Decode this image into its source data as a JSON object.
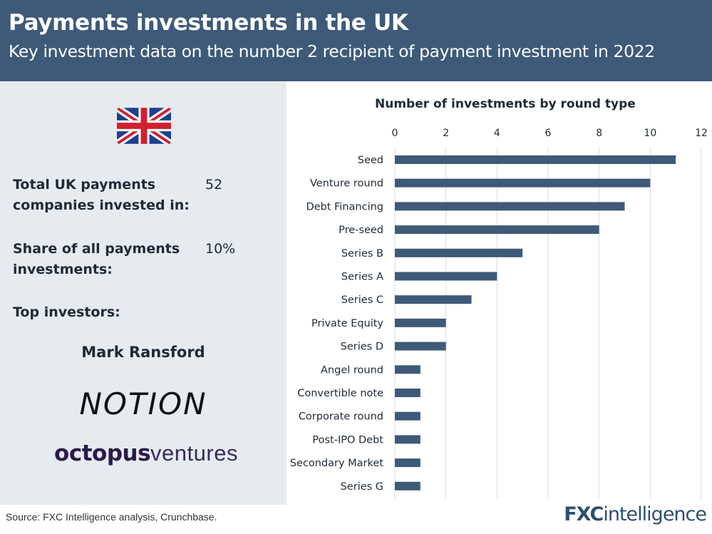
{
  "header": {
    "title": "Payments investments in the UK",
    "subtitle": "Key investment data on the number 2 recipient of payment investment in 2022"
  },
  "stats": {
    "total_label_line1": "Total UK payments",
    "total_label_line2": "companies invested in:",
    "total_value": "52",
    "share_label_line1": "Share of all payments",
    "share_label_line2": "investments:",
    "share_value": "10%",
    "top_investors_label": "Top investors:"
  },
  "investors": [
    {
      "name": "Mark Ransford"
    },
    {
      "name": "NOTION",
      "type": "logo"
    },
    {
      "name_bold": "octopus",
      "name_light": "ventures",
      "type": "logo"
    }
  ],
  "chart_data": {
    "type": "bar",
    "orientation": "horizontal",
    "title": "Number of investments by round type",
    "categories": [
      "Seed",
      "Venture round",
      "Debt Financing",
      "Pre-seed",
      "Series B",
      "Series A",
      "Series C",
      "Private Equity",
      "Series D",
      "Angel round",
      "Convertible note",
      "Corporate round",
      "Post-IPO Debt",
      "Secondary Market",
      "Series G"
    ],
    "values": [
      11,
      10,
      9,
      8,
      5,
      4,
      3,
      2,
      2,
      1,
      1,
      1,
      1,
      1,
      1
    ],
    "xlim": [
      0,
      12
    ],
    "xticks": [
      "0",
      "2",
      "4",
      "6",
      "8",
      "10",
      "12"
    ],
    "axis_position": "top",
    "grid": "vertical",
    "bar_color": "#3e5a78"
  },
  "footer": {
    "source": "Source: FXC Intelligence analysis, Crunchbase.",
    "brand_bold": "FXC",
    "brand_rest": "intelligence"
  },
  "colors": {
    "header_bg": "#3e5a78",
    "panel_bg": "#e6ebf0"
  }
}
